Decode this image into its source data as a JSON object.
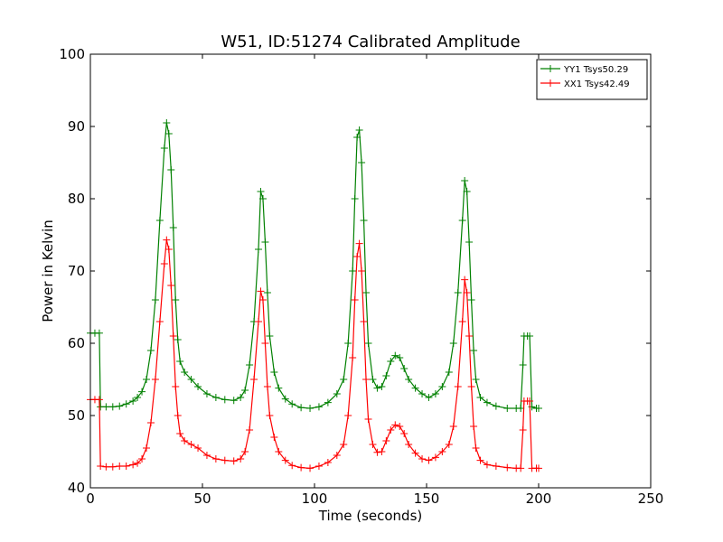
{
  "chart_data": {
    "type": "line",
    "title": "W51, ID:51274 Calibrated Amplitude",
    "xlabel": "Time (seconds)",
    "ylabel": "Power in Kelvin",
    "xlim": [
      0,
      250
    ],
    "ylim": [
      40,
      100
    ],
    "xticks": [
      0,
      50,
      100,
      150,
      200,
      250
    ],
    "yticks": [
      40,
      50,
      60,
      70,
      80,
      90,
      100
    ],
    "grid": false,
    "legend_position": "top-right",
    "series": [
      {
        "name": "YY1 Tsys50.29",
        "color": "#008000",
        "marker": "+",
        "points": [
          [
            0,
            61.4
          ],
          [
            2,
            61.4
          ],
          [
            4,
            61.4
          ],
          [
            4.5,
            51.2
          ],
          [
            7,
            51.2
          ],
          [
            10,
            51.2
          ],
          [
            13,
            51.3
          ],
          [
            16,
            51.6
          ],
          [
            19,
            52.0
          ],
          [
            21,
            52.5
          ],
          [
            23,
            53.3
          ],
          [
            25,
            55.0
          ],
          [
            27,
            59.0
          ],
          [
            29,
            66.0
          ],
          [
            31,
            77.0
          ],
          [
            33,
            87.0
          ],
          [
            34,
            90.5
          ],
          [
            35,
            89.0
          ],
          [
            36,
            84.0
          ],
          [
            37,
            76.0
          ],
          [
            38,
            66.0
          ],
          [
            39,
            60.5
          ],
          [
            40,
            57.5
          ],
          [
            42,
            56.0
          ],
          [
            45,
            55.0
          ],
          [
            48,
            54.0
          ],
          [
            52,
            53.0
          ],
          [
            56,
            52.5
          ],
          [
            60,
            52.2
          ],
          [
            64,
            52.1
          ],
          [
            67,
            52.5
          ],
          [
            69,
            53.5
          ],
          [
            71,
            57.0
          ],
          [
            73,
            63.0
          ],
          [
            75,
            73.0
          ],
          [
            76,
            81.0
          ],
          [
            77,
            80.0
          ],
          [
            78,
            74.0
          ],
          [
            79,
            67.0
          ],
          [
            80,
            61.0
          ],
          [
            82,
            56.0
          ],
          [
            84,
            53.8
          ],
          [
            87,
            52.3
          ],
          [
            90,
            51.6
          ],
          [
            94,
            51.1
          ],
          [
            98,
            51.0
          ],
          [
            102,
            51.2
          ],
          [
            106,
            51.8
          ],
          [
            110,
            53.0
          ],
          [
            113,
            55.0
          ],
          [
            115,
            60.0
          ],
          [
            117,
            70.0
          ],
          [
            118,
            80.0
          ],
          [
            119,
            88.5
          ],
          [
            120,
            89.5
          ],
          [
            121,
            85.0
          ],
          [
            122,
            77.0
          ],
          [
            123,
            67.0
          ],
          [
            124,
            60.0
          ],
          [
            126,
            55.0
          ],
          [
            128,
            53.8
          ],
          [
            130,
            54.0
          ],
          [
            132,
            55.5
          ],
          [
            134,
            57.5
          ],
          [
            136,
            58.3
          ],
          [
            138,
            58.0
          ],
          [
            140,
            56.5
          ],
          [
            142,
            55.0
          ],
          [
            145,
            53.8
          ],
          [
            148,
            53.0
          ],
          [
            151,
            52.5
          ],
          [
            154,
            53.0
          ],
          [
            157,
            54.0
          ],
          [
            160,
            56.0
          ],
          [
            162,
            60.0
          ],
          [
            164,
            67.0
          ],
          [
            166,
            77.0
          ],
          [
            167,
            82.5
          ],
          [
            168,
            81.0
          ],
          [
            169,
            74.0
          ],
          [
            170,
            66.0
          ],
          [
            171,
            59.0
          ],
          [
            172,
            55.0
          ],
          [
            174,
            52.5
          ],
          [
            177,
            51.8
          ],
          [
            181,
            51.3
          ],
          [
            186,
            51.0
          ],
          [
            190,
            51.0
          ],
          [
            192,
            51.0
          ],
          [
            193,
            57.0
          ],
          [
            193.5,
            61.0
          ],
          [
            195,
            61.0
          ],
          [
            196,
            61.0
          ],
          [
            197,
            51.2
          ],
          [
            199,
            51.0
          ],
          [
            200,
            51.0
          ]
        ]
      },
      {
        "name": "XX1 Tsys42.49",
        "color": "#ff0000",
        "marker": "+",
        "points": [
          [
            0,
            52.2
          ],
          [
            2,
            52.2
          ],
          [
            4,
            52.2
          ],
          [
            4.5,
            43.0
          ],
          [
            7,
            42.9
          ],
          [
            10,
            42.9
          ],
          [
            13,
            43.0
          ],
          [
            16,
            43.0
          ],
          [
            19,
            43.2
          ],
          [
            21,
            43.4
          ],
          [
            23,
            44.0
          ],
          [
            25,
            45.5
          ],
          [
            27,
            49.0
          ],
          [
            29,
            55.0
          ],
          [
            31,
            63.0
          ],
          [
            33,
            71.0
          ],
          [
            34,
            74.3
          ],
          [
            35,
            73.0
          ],
          [
            36,
            68.0
          ],
          [
            37,
            61.0
          ],
          [
            38,
            54.0
          ],
          [
            39,
            50.0
          ],
          [
            40,
            47.5
          ],
          [
            42,
            46.5
          ],
          [
            45,
            46.0
          ],
          [
            48,
            45.5
          ],
          [
            52,
            44.5
          ],
          [
            56,
            44.0
          ],
          [
            60,
            43.8
          ],
          [
            64,
            43.7
          ],
          [
            67,
            44.0
          ],
          [
            69,
            45.0
          ],
          [
            71,
            48.0
          ],
          [
            73,
            55.0
          ],
          [
            75,
            63.0
          ],
          [
            76,
            67.2
          ],
          [
            77,
            66.0
          ],
          [
            78,
            60.0
          ],
          [
            79,
            54.0
          ],
          [
            80,
            50.0
          ],
          [
            82,
            47.0
          ],
          [
            84,
            45.0
          ],
          [
            87,
            43.8
          ],
          [
            90,
            43.1
          ],
          [
            94,
            42.8
          ],
          [
            98,
            42.7
          ],
          [
            102,
            43.0
          ],
          [
            106,
            43.5
          ],
          [
            110,
            44.5
          ],
          [
            113,
            46.0
          ],
          [
            115,
            50.0
          ],
          [
            117,
            58.0
          ],
          [
            118,
            66.0
          ],
          [
            119,
            72.0
          ],
          [
            120,
            73.8
          ],
          [
            121,
            70.0
          ],
          [
            122,
            63.0
          ],
          [
            123,
            55.0
          ],
          [
            124,
            49.5
          ],
          [
            126,
            46.0
          ],
          [
            128,
            44.9
          ],
          [
            130,
            45.0
          ],
          [
            132,
            46.5
          ],
          [
            134,
            48.0
          ],
          [
            136,
            48.7
          ],
          [
            138,
            48.5
          ],
          [
            140,
            47.5
          ],
          [
            142,
            46.0
          ],
          [
            145,
            44.8
          ],
          [
            148,
            44.0
          ],
          [
            151,
            43.8
          ],
          [
            154,
            44.2
          ],
          [
            157,
            45.0
          ],
          [
            160,
            46.0
          ],
          [
            162,
            48.5
          ],
          [
            164,
            54.0
          ],
          [
            166,
            63.0
          ],
          [
            167,
            68.8
          ],
          [
            168,
            67.0
          ],
          [
            169,
            61.0
          ],
          [
            170,
            54.0
          ],
          [
            171,
            48.5
          ],
          [
            172,
            45.5
          ],
          [
            174,
            43.8
          ],
          [
            177,
            43.2
          ],
          [
            181,
            43.0
          ],
          [
            186,
            42.8
          ],
          [
            190,
            42.7
          ],
          [
            192,
            42.7
          ],
          [
            193,
            48.0
          ],
          [
            193.5,
            52.0
          ],
          [
            195,
            52.0
          ],
          [
            196,
            52.0
          ],
          [
            197,
            42.7
          ],
          [
            199,
            42.7
          ],
          [
            200,
            42.7
          ]
        ]
      }
    ]
  }
}
